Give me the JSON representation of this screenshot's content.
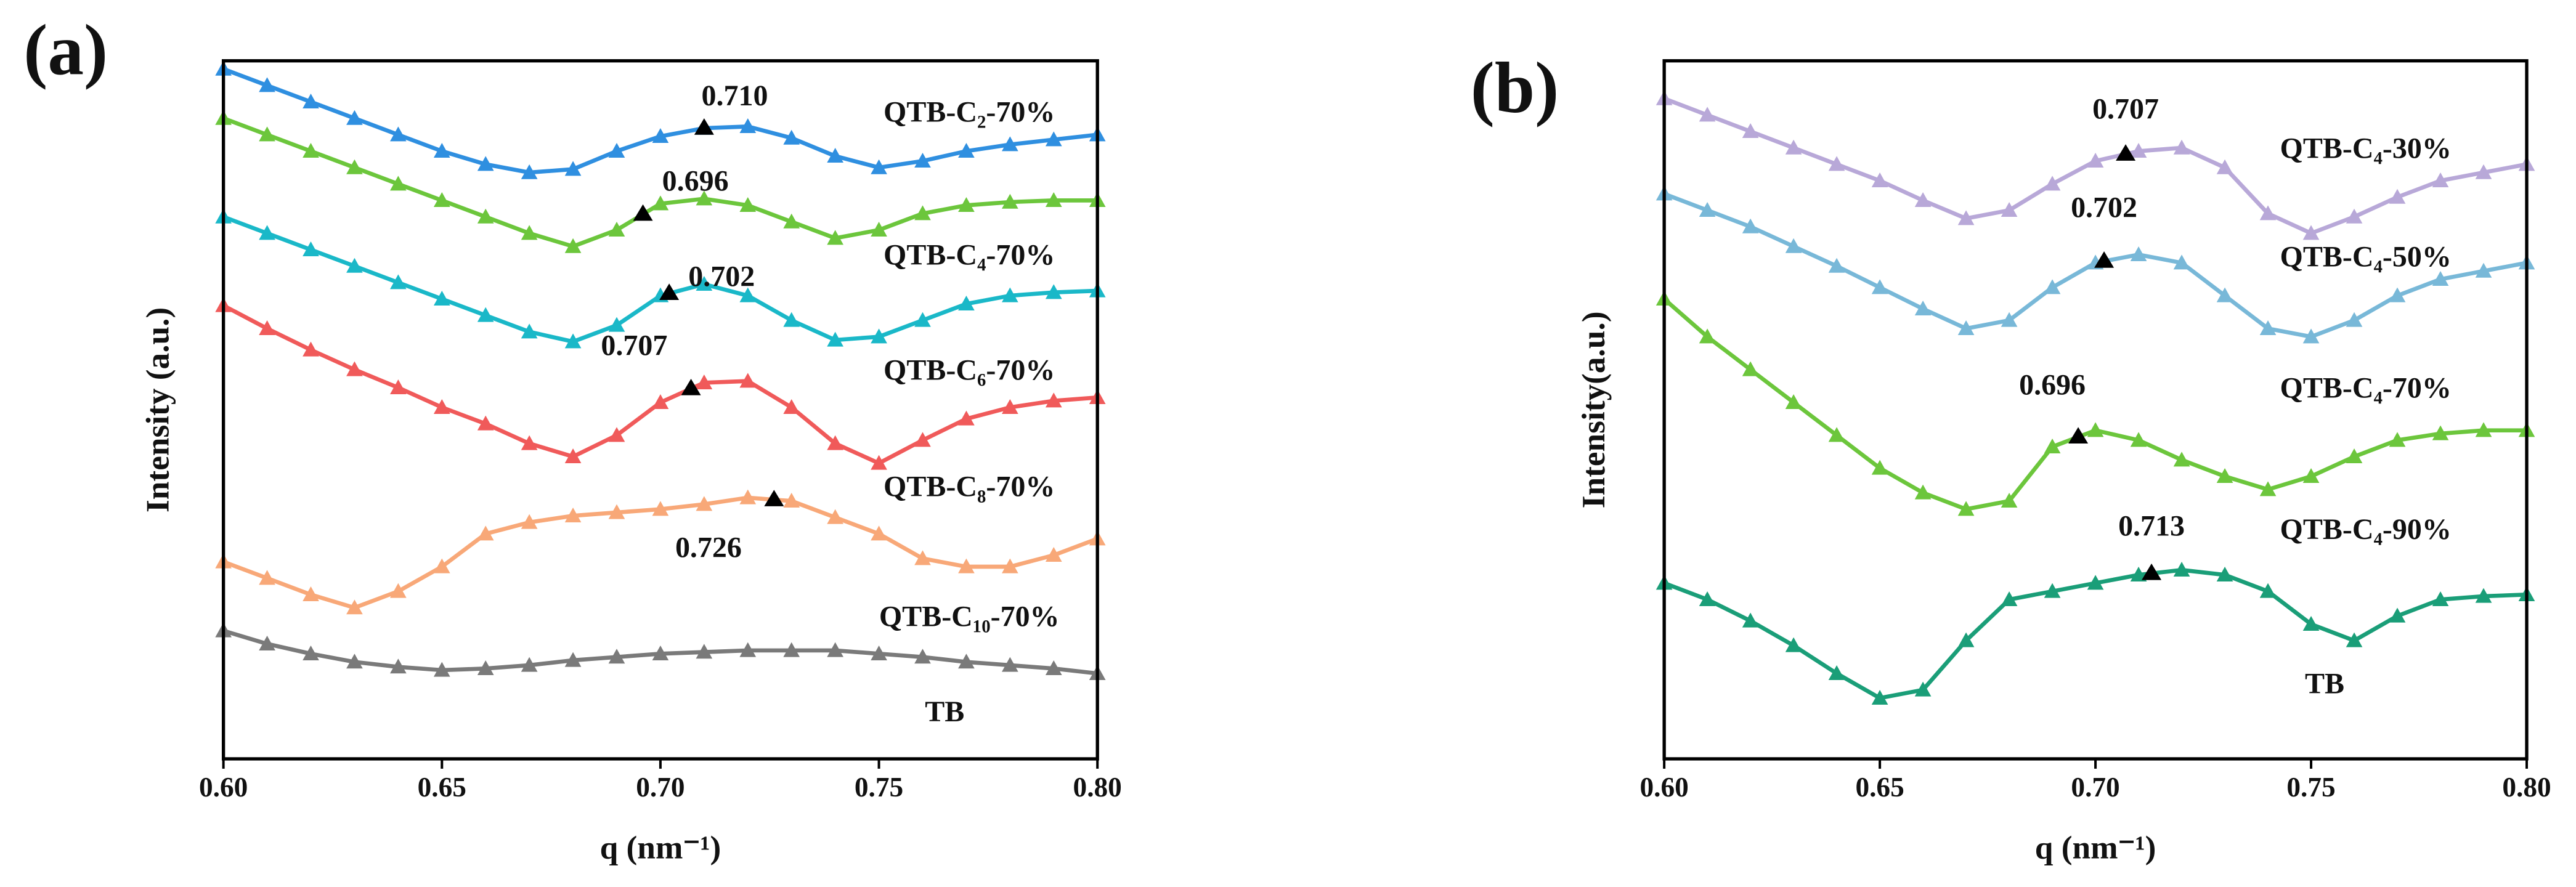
{
  "chart_data": [
    {
      "type": "scatter",
      "panel_label": "(a)",
      "xlabel": "q (nm⁻¹)",
      "ylabel": "Intensity (a.u.)",
      "xlim": [
        0.6,
        0.8
      ],
      "ylim": [
        0,
        425
      ],
      "xticks": [
        {
          "value": 0.6,
          "label": "0.60"
        },
        {
          "value": 0.65,
          "label": "0.65"
        },
        {
          "value": 0.7,
          "label": "0.70"
        },
        {
          "value": 0.75,
          "label": "0.75"
        },
        {
          "value": 0.8,
          "label": "0.80"
        }
      ],
      "x": [
        0.6,
        0.61,
        0.62,
        0.63,
        0.64,
        0.65,
        0.66,
        0.67,
        0.68,
        0.69,
        0.7,
        0.71,
        0.72,
        0.73,
        0.74,
        0.75,
        0.76,
        0.77,
        0.78,
        0.79,
        0.8
      ],
      "series": [
        {
          "name": "QTB-C₂-70%",
          "color": "#2f8fe0",
          "peak": {
            "value": 0.71,
            "label": "0.710"
          },
          "values": [
            420,
            410,
            400,
            390,
            380,
            370,
            362,
            357,
            359,
            370,
            379,
            384,
            385,
            378,
            367,
            360,
            364,
            370,
            374,
            377,
            380
          ]
        },
        {
          "name": "QTB-C₄-70%",
          "color": "#6cc63c",
          "peak": {
            "value": 0.696,
            "label": "0.696"
          },
          "values": [
            390,
            380,
            370,
            360,
            350,
            340,
            330,
            320,
            312,
            322,
            338,
            341,
            337,
            327,
            317,
            322,
            332,
            337,
            339,
            340,
            340
          ]
        },
        {
          "name": "QTB-C₆-70%",
          "color": "#1ab8c8",
          "peak": {
            "value": 0.702,
            "label": "0.702"
          },
          "values": [
            330,
            320,
            310,
            300,
            290,
            280,
            270,
            260,
            254,
            264,
            282,
            289,
            282,
            267,
            255,
            257,
            267,
            277,
            282,
            284,
            285
          ]
        },
        {
          "name": "QTB-C₈-70%",
          "color": "#f05a5a",
          "peak": {
            "value": 0.707,
            "label": "0.707"
          },
          "values": [
            276,
            262,
            249,
            237,
            226,
            214,
            204,
            192,
            184,
            197,
            217,
            229,
            230,
            214,
            192,
            180,
            194,
            207,
            214,
            218,
            220
          ]
        },
        {
          "name": "QTB-C₁₀-70%",
          "color": "#f8a878",
          "peak": {
            "value": 0.726,
            "label": "0.726"
          },
          "values": [
            120,
            110,
            100,
            92,
            102,
            117,
            137,
            144,
            148,
            150,
            152,
            155,
            159,
            157,
            147,
            137,
            122,
            117,
            117,
            124,
            134
          ]
        },
        {
          "name": "TB",
          "color": "#7a7a7a",
          "values": [
            78,
            70,
            64,
            59,
            56,
            54,
            55,
            57,
            60,
            62,
            64,
            65,
            66,
            66,
            66,
            64,
            62,
            59,
            57,
            55,
            52
          ]
        }
      ]
    },
    {
      "type": "scatter",
      "panel_label": "(b)",
      "xlabel": "q (nm⁻¹)",
      "ylabel": "Intensity(a.u.)",
      "xlim": [
        0.6,
        0.8
      ],
      "ylim": [
        0,
        425
      ],
      "xticks": [
        {
          "value": 0.6,
          "label": "0.60"
        },
        {
          "value": 0.65,
          "label": "0.65"
        },
        {
          "value": 0.7,
          "label": "0.70"
        },
        {
          "value": 0.75,
          "label": "0.75"
        },
        {
          "value": 0.8,
          "label": "0.80"
        }
      ],
      "x": [
        0.6,
        0.61,
        0.62,
        0.63,
        0.64,
        0.65,
        0.66,
        0.67,
        0.68,
        0.69,
        0.7,
        0.71,
        0.72,
        0.73,
        0.74,
        0.75,
        0.76,
        0.77,
        0.78,
        0.79,
        0.8
      ],
      "series": [
        {
          "name": "QTB-C₄-30%",
          "color": "#b8a8d8",
          "peak": {
            "value": 0.707,
            "label": "0.707"
          },
          "values": [
            402,
            392,
            382,
            372,
            362,
            352,
            340,
            329,
            334,
            350,
            364,
            370,
            372,
            360,
            332,
            320,
            330,
            342,
            352,
            357,
            362
          ]
        },
        {
          "name": "QTB-C₄-50%",
          "color": "#78b8d8",
          "peak": {
            "value": 0.702,
            "label": "0.702"
          },
          "values": [
            344,
            334,
            324,
            312,
            300,
            287,
            274,
            262,
            267,
            287,
            302,
            307,
            302,
            282,
            262,
            257,
            267,
            282,
            292,
            297,
            302
          ]
        },
        {
          "name": "QTB-C₄-70%",
          "color": "#6cc63c",
          "peak": {
            "value": 0.696,
            "label": "0.696"
          },
          "values": [
            280,
            257,
            237,
            217,
            197,
            177,
            162,
            152,
            157,
            190,
            200,
            194,
            182,
            172,
            164,
            172,
            184,
            194,
            198,
            200,
            200
          ]
        },
        {
          "name": "QTB-C₄-90%",
          "color": "#1a9e78",
          "peak": {
            "value": 0.713,
            "label": "0.713"
          },
          "values": [
            107,
            97,
            84,
            69,
            52,
            37,
            42,
            72,
            97,
            102,
            107,
            112,
            115,
            112,
            102,
            82,
            72,
            87,
            97,
            99,
            100
          ]
        },
        {
          "name": "TB",
          "color": "#1a9e78",
          "values": []
        }
      ]
    }
  ]
}
